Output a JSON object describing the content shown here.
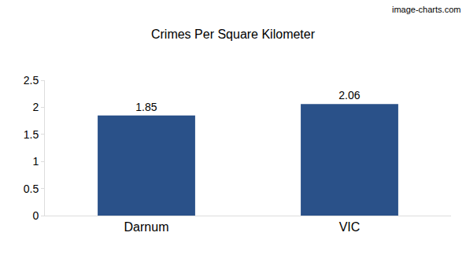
{
  "chart_data": {
    "type": "bar",
    "title": "Crimes Per Square Kilometer",
    "annotation": "image-charts.com",
    "categories": [
      "Darnum",
      "VIC"
    ],
    "values": [
      1.85,
      2.06
    ],
    "color": "#2a5189",
    "ylim": [
      0,
      2.5
    ],
    "yticks": [
      0,
      0.5,
      1,
      1.5,
      2,
      2.5
    ],
    "grid": false,
    "data_labels": true
  }
}
